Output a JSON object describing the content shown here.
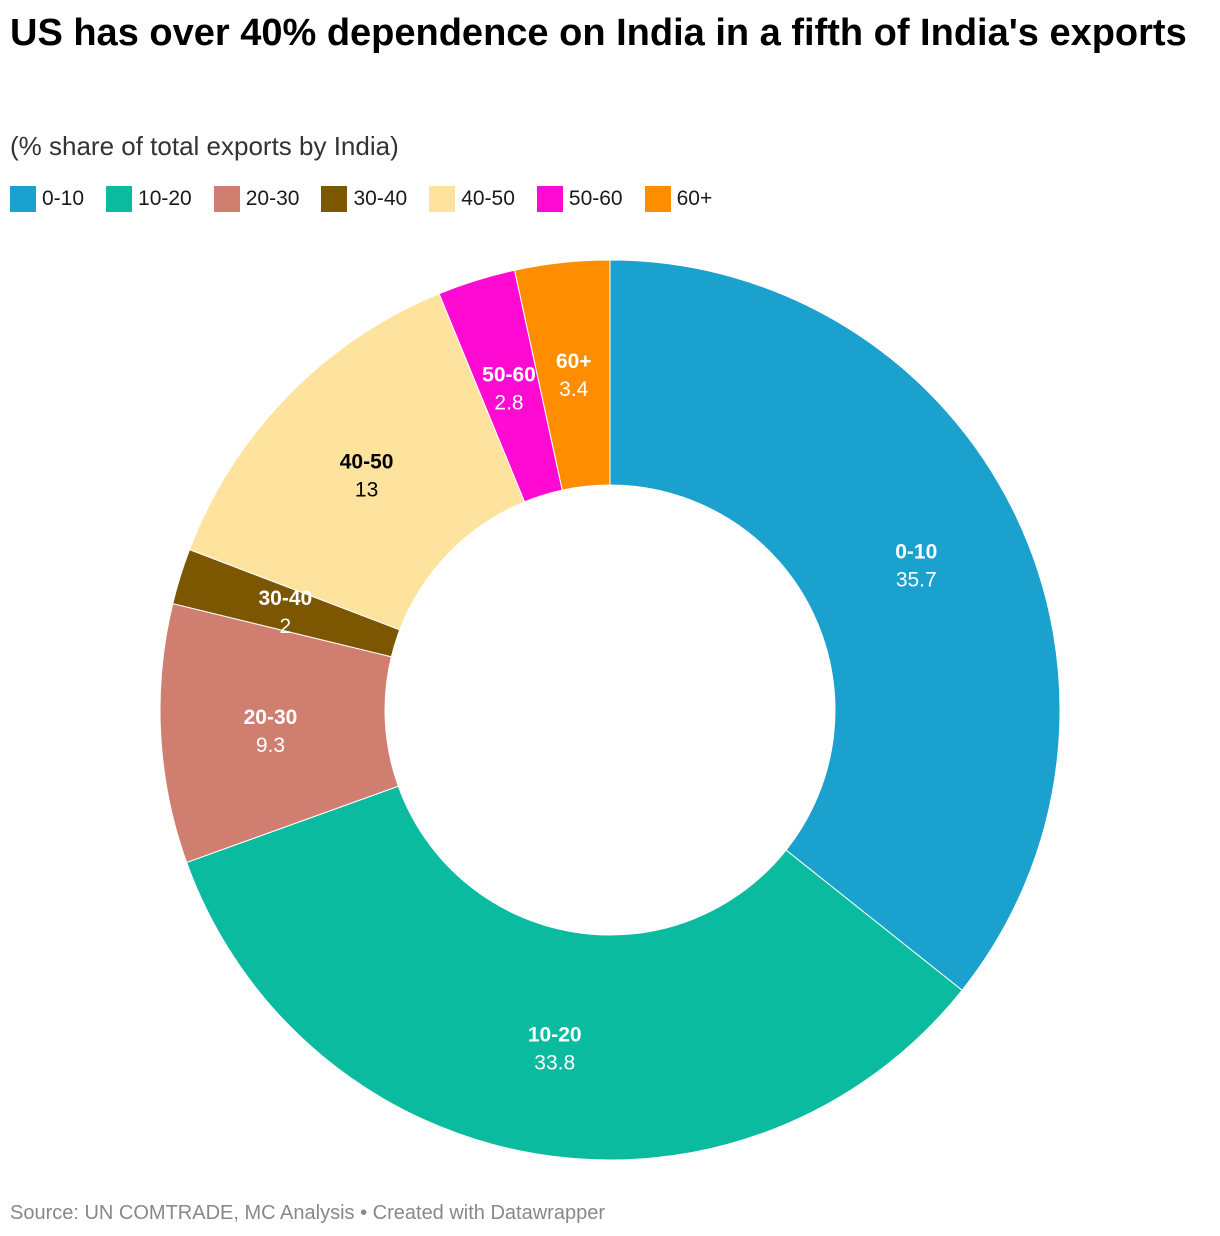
{
  "title": "US has over 40% dependence on India in a fifth of India's exports",
  "subtitle": "(% share of total exports by India)",
  "footer": {
    "source": "Source: UN COMTRADE, MC Analysis",
    "separator": "•",
    "credit": "Created with Datawrapper"
  },
  "chart_data": {
    "type": "pie",
    "variant": "donut",
    "title": "US has over 40% dependence on India in a fifth of India's exports",
    "subtitle": "(% share of total exports by India)",
    "legend_placement": "top-left",
    "categories": [
      "0-10",
      "10-20",
      "20-30",
      "30-40",
      "40-50",
      "50-60",
      "60+"
    ],
    "values": [
      35.7,
      33.8,
      9.3,
      2,
      13,
      2.8,
      3.4
    ],
    "value_labels": [
      "35.7",
      "33.8",
      "9.3",
      "2",
      "13",
      "2.8",
      "3.4"
    ],
    "colors": [
      "#1ba1ce",
      "#0bbb9f",
      "#d07e70",
      "#7d5602",
      "#fee39e",
      "#fe0ad2",
      "#fe8e00"
    ],
    "label_colors": [
      "#ffffff",
      "#ffffff",
      "#ffffff",
      "#ffffff",
      "#000000",
      "#ffffff",
      "#ffffff"
    ]
  }
}
